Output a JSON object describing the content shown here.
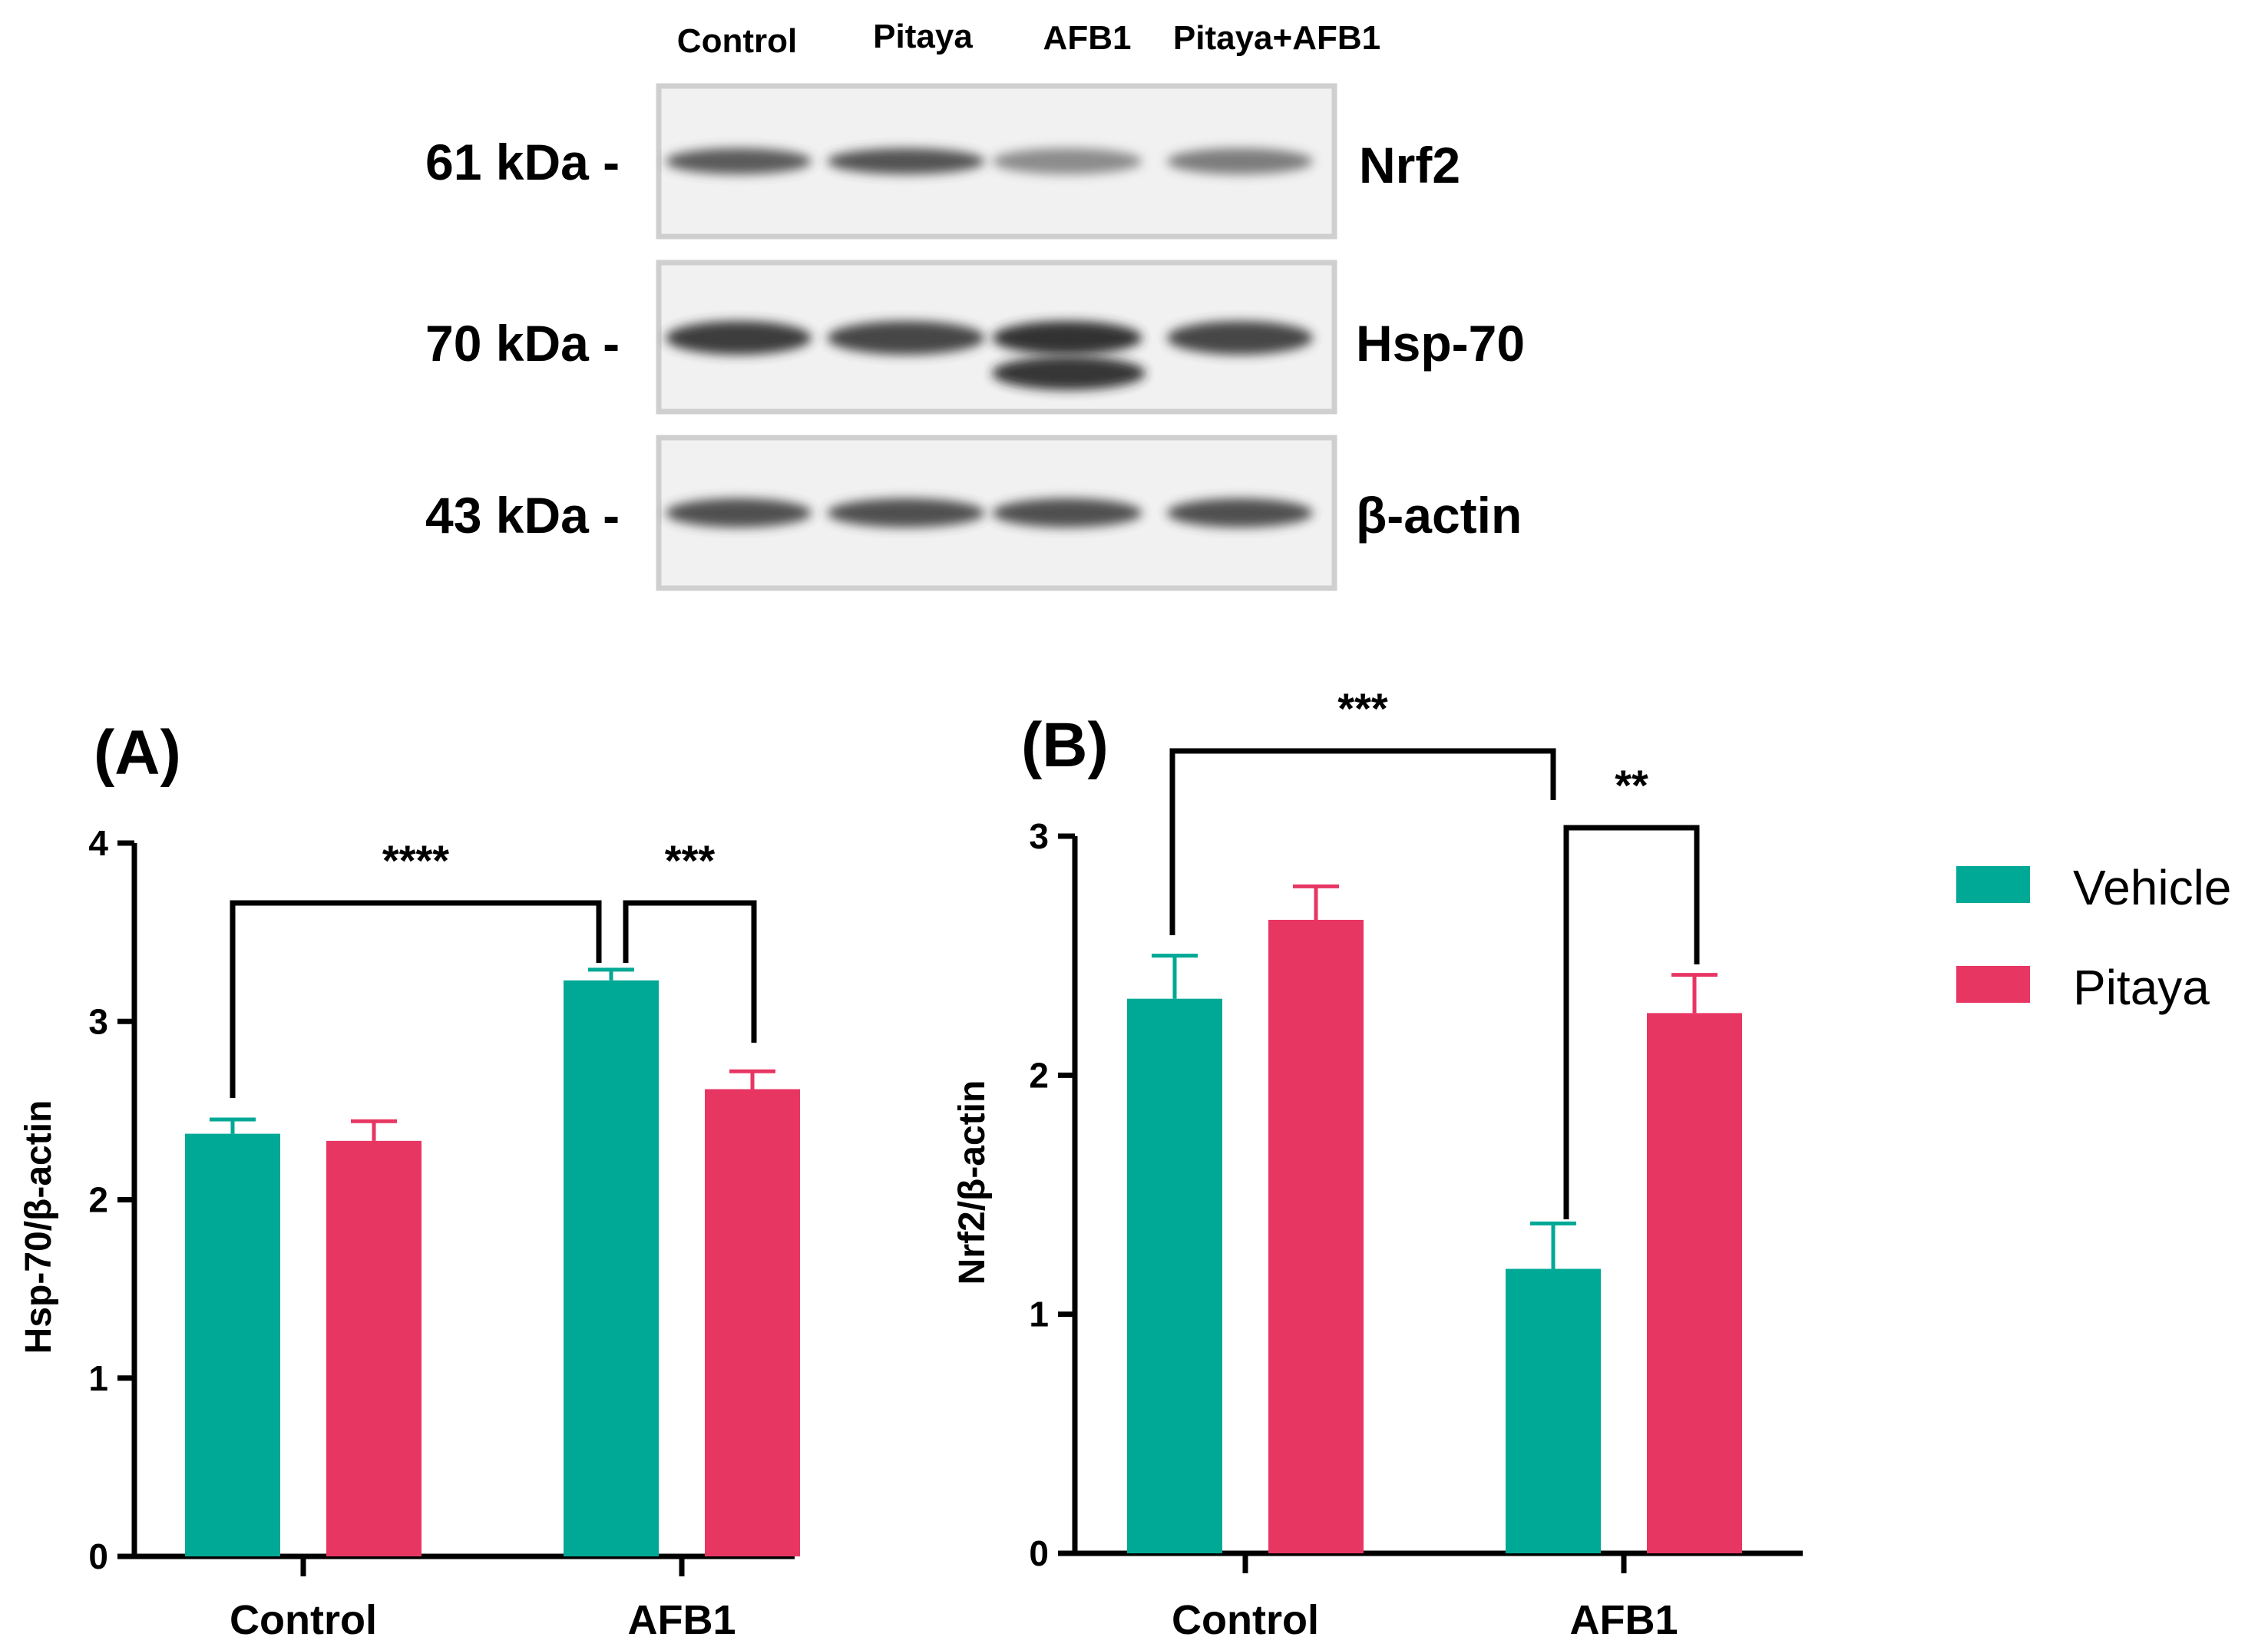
{
  "colors": {
    "vehicle": "#00a896",
    "pitaya": "#e83663"
  },
  "blot": {
    "lanes": [
      "Control",
      "Pitaya",
      "AFB1",
      "Pitaya+AFB1"
    ],
    "rows": [
      {
        "kda": "61 kDa -",
        "protein": "Nrf2",
        "intensity": [
          0.75,
          0.78,
          0.45,
          0.55
        ]
      },
      {
        "kda": "70 kDa -",
        "protein": "Hsp-70",
        "intensity": [
          0.9,
          0.85,
          0.95,
          0.85
        ]
      },
      {
        "kda": "43 kDa -",
        "protein": "β-actin",
        "intensity": [
          0.8,
          0.8,
          0.8,
          0.8
        ]
      }
    ]
  },
  "legend": [
    {
      "name": "Vehicle",
      "color": "#00a896"
    },
    {
      "name": "Pitaya",
      "color": "#e83663"
    }
  ],
  "chart_data": [
    {
      "panel": "(A)",
      "type": "bar",
      "categories": [
        "Control",
        "AFB1"
      ],
      "series": [
        {
          "name": "Vehicle",
          "values": [
            2.37,
            3.23
          ],
          "errors": [
            0.08,
            0.06
          ]
        },
        {
          "name": "Pitaya",
          "values": [
            2.33,
            2.62
          ],
          "errors": [
            0.11,
            0.1
          ]
        }
      ],
      "ylabel": "Hsp-70/β-actin",
      "ylim": [
        0,
        4
      ],
      "yticks": [
        "0",
        "1",
        "2",
        "3",
        "4"
      ],
      "significance": [
        {
          "label": "****",
          "from": "Control Vehicle",
          "to": "AFB1 Vehicle"
        },
        {
          "label": "***",
          "from": "AFB1 Vehicle",
          "to": "AFB1 Pitaya"
        }
      ]
    },
    {
      "panel": "(B)",
      "type": "bar",
      "categories": [
        "Control",
        "AFB1"
      ],
      "series": [
        {
          "name": "Vehicle",
          "values": [
            2.32,
            1.19
          ],
          "errors": [
            0.18,
            0.19
          ]
        },
        {
          "name": "Pitaya",
          "values": [
            2.65,
            2.26
          ],
          "errors": [
            0.14,
            0.16
          ]
        }
      ],
      "ylabel": "Nrf2/β-actin",
      "ylim": [
        0,
        3
      ],
      "yticks": [
        "0",
        "1",
        "2",
        "3"
      ],
      "significance": [
        {
          "label": "***",
          "from": "Control Vehicle",
          "to": "AFB1 Vehicle"
        },
        {
          "label": "**",
          "from": "AFB1 Vehicle",
          "to": "AFB1 Pitaya"
        }
      ]
    }
  ]
}
